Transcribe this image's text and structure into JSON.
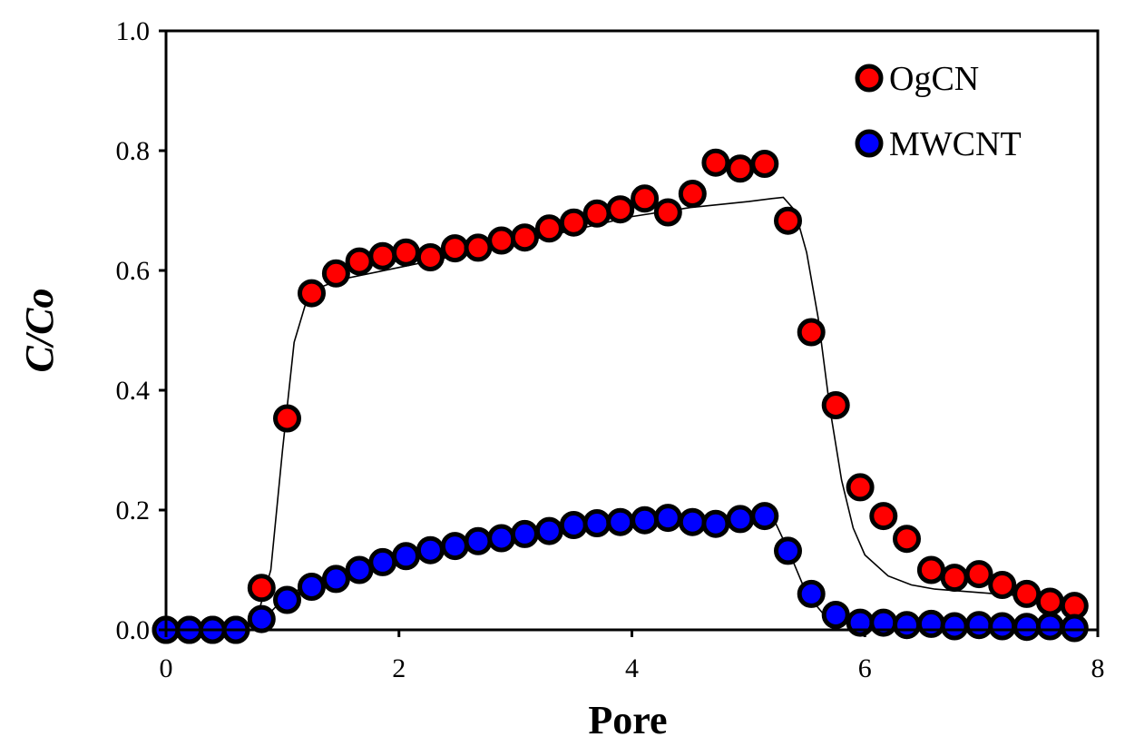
{
  "chart_data": {
    "type": "scatter",
    "title": "",
    "xlabel": "Pore",
    "ylabel": "C/Co",
    "xlim": [
      0,
      8
    ],
    "ylim": [
      0.0,
      1.0
    ],
    "x_ticks": [
      0,
      2,
      4,
      6,
      8
    ],
    "y_ticks": [
      0.0,
      0.2,
      0.4,
      0.6,
      0.8,
      1.0
    ],
    "x_tick_labels": [
      "0",
      "2",
      "4",
      "6",
      "8"
    ],
    "y_tick_labels": [
      "0.0",
      "0.2",
      "0.4",
      "0.6",
      "0.8",
      "1.0"
    ],
    "grid": false,
    "legend_position": "top-right",
    "series": [
      {
        "name": "OgCN",
        "color": "#ff0000",
        "marker": "circle",
        "points": [
          [
            0.0,
            0.0
          ],
          [
            0.2,
            0.0
          ],
          [
            0.4,
            0.0
          ],
          [
            0.6,
            0.0
          ],
          [
            0.82,
            0.07
          ],
          [
            1.04,
            0.353
          ],
          [
            1.25,
            0.562
          ],
          [
            1.46,
            0.595
          ],
          [
            1.66,
            0.615
          ],
          [
            1.86,
            0.624
          ],
          [
            2.06,
            0.63
          ],
          [
            2.27,
            0.622
          ],
          [
            2.48,
            0.637
          ],
          [
            2.68,
            0.638
          ],
          [
            2.88,
            0.65
          ],
          [
            3.08,
            0.655
          ],
          [
            3.29,
            0.67
          ],
          [
            3.5,
            0.68
          ],
          [
            3.7,
            0.695
          ],
          [
            3.9,
            0.702
          ],
          [
            4.11,
            0.72
          ],
          [
            4.31,
            0.697
          ],
          [
            4.52,
            0.728
          ],
          [
            4.72,
            0.78
          ],
          [
            4.93,
            0.77
          ],
          [
            5.14,
            0.778
          ],
          [
            5.34,
            0.683
          ],
          [
            5.54,
            0.497
          ],
          [
            5.75,
            0.375
          ],
          [
            5.96,
            0.238
          ],
          [
            6.16,
            0.19
          ],
          [
            6.36,
            0.152
          ],
          [
            6.57,
            0.1
          ],
          [
            6.77,
            0.087
          ],
          [
            6.98,
            0.093
          ],
          [
            7.18,
            0.075
          ],
          [
            7.39,
            0.06
          ],
          [
            7.59,
            0.047
          ],
          [
            7.8,
            0.04
          ]
        ],
        "fit_line": [
          [
            0.0,
            0.0
          ],
          [
            0.75,
            0.0
          ],
          [
            0.9,
            0.1
          ],
          [
            1.0,
            0.3
          ],
          [
            1.1,
            0.48
          ],
          [
            1.2,
            0.545
          ],
          [
            1.3,
            0.57
          ],
          [
            1.5,
            0.585
          ],
          [
            2.0,
            0.605
          ],
          [
            3.0,
            0.645
          ],
          [
            4.0,
            0.69
          ],
          [
            4.5,
            0.705
          ],
          [
            5.0,
            0.715
          ],
          [
            5.2,
            0.72
          ],
          [
            5.3,
            0.722
          ],
          [
            5.4,
            0.7
          ],
          [
            5.5,
            0.63
          ],
          [
            5.6,
            0.52
          ],
          [
            5.7,
            0.37
          ],
          [
            5.8,
            0.25
          ],
          [
            5.9,
            0.17
          ],
          [
            6.0,
            0.125
          ],
          [
            6.2,
            0.09
          ],
          [
            6.4,
            0.075
          ],
          [
            6.6,
            0.068
          ],
          [
            7.0,
            0.062
          ],
          [
            7.8,
            0.05
          ]
        ]
      },
      {
        "name": "MWCNT",
        "color": "#0000ff",
        "marker": "circle",
        "points": [
          [
            0.0,
            0.0
          ],
          [
            0.2,
            0.0
          ],
          [
            0.4,
            0.0
          ],
          [
            0.6,
            0.0
          ],
          [
            0.82,
            0.018
          ],
          [
            1.04,
            0.05
          ],
          [
            1.25,
            0.072
          ],
          [
            1.46,
            0.085
          ],
          [
            1.66,
            0.1
          ],
          [
            1.86,
            0.113
          ],
          [
            2.06,
            0.123
          ],
          [
            2.27,
            0.133
          ],
          [
            2.48,
            0.14
          ],
          [
            2.68,
            0.148
          ],
          [
            2.88,
            0.153
          ],
          [
            3.08,
            0.16
          ],
          [
            3.29,
            0.165
          ],
          [
            3.5,
            0.175
          ],
          [
            3.7,
            0.178
          ],
          [
            3.9,
            0.18
          ],
          [
            4.11,
            0.183
          ],
          [
            4.31,
            0.187
          ],
          [
            4.52,
            0.18
          ],
          [
            4.72,
            0.177
          ],
          [
            4.93,
            0.185
          ],
          [
            5.14,
            0.19
          ],
          [
            5.34,
            0.132
          ],
          [
            5.54,
            0.06
          ],
          [
            5.75,
            0.025
          ],
          [
            5.96,
            0.012
          ],
          [
            6.16,
            0.012
          ],
          [
            6.36,
            0.008
          ],
          [
            6.57,
            0.01
          ],
          [
            6.77,
            0.006
          ],
          [
            6.98,
            0.008
          ],
          [
            7.18,
            0.006
          ],
          [
            7.39,
            0.005
          ],
          [
            7.59,
            0.006
          ],
          [
            7.8,
            0.003
          ]
        ],
        "fit_line": [
          [
            0.0,
            0.0
          ],
          [
            0.75,
            0.0
          ],
          [
            0.85,
            0.02
          ],
          [
            1.0,
            0.05
          ],
          [
            1.2,
            0.075
          ],
          [
            1.5,
            0.09
          ],
          [
            2.0,
            0.12
          ],
          [
            3.0,
            0.16
          ],
          [
            4.0,
            0.18
          ],
          [
            4.5,
            0.185
          ],
          [
            5.0,
            0.19
          ],
          [
            5.2,
            0.192
          ],
          [
            5.35,
            0.13
          ],
          [
            5.5,
            0.06
          ],
          [
            5.65,
            0.025
          ],
          [
            5.8,
            0.012
          ],
          [
            6.0,
            0.008
          ],
          [
            7.0,
            0.005
          ],
          [
            7.8,
            0.003
          ]
        ]
      }
    ]
  }
}
